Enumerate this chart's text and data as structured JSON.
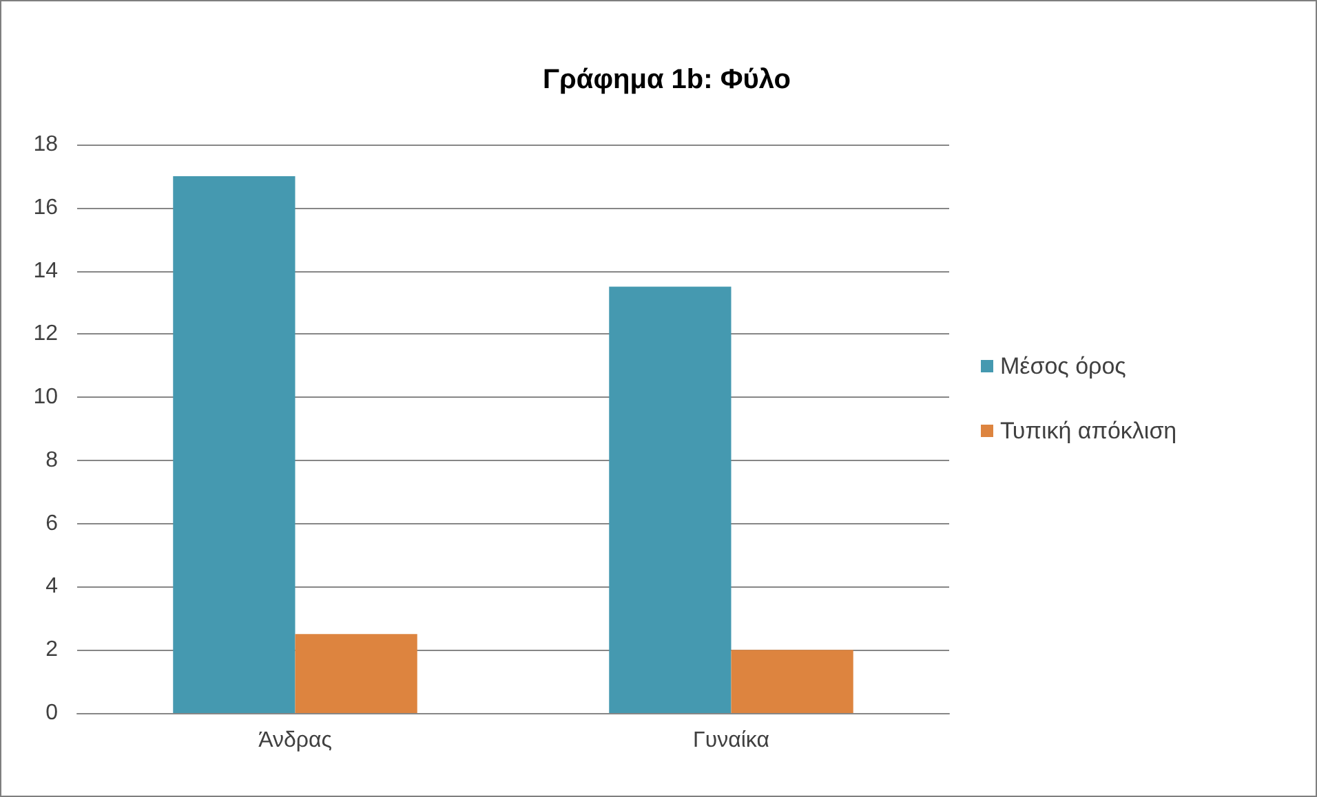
{
  "chart_data": {
    "type": "bar",
    "title": "Γράφημα 1b: Φύλο",
    "categories": [
      "Άνδρας",
      "Γυναίκα"
    ],
    "series": [
      {
        "name": "Μέσος όρος",
        "color": "#4599b0",
        "values": [
          17,
          13.5
        ]
      },
      {
        "name": "Τυπική απόκλιση",
        "color": "#dd843f",
        "values": [
          2.5,
          2
        ]
      }
    ],
    "ylim": [
      0,
      18
    ],
    "yticks": [
      0,
      2,
      4,
      6,
      8,
      10,
      12,
      14,
      16,
      18
    ],
    "grid": "y",
    "legend": "right"
  }
}
